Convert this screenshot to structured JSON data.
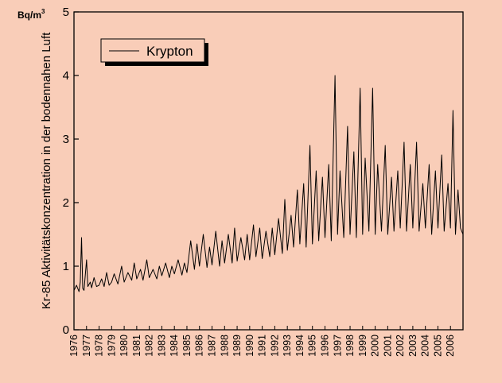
{
  "chart_data": {
    "type": "line",
    "unit_label": "Bq/m",
    "unit_superscript": "3",
    "ylabel": "Kr-85 Aktivitätskonzentration in der bodennahen Luft",
    "xlim": [
      1976,
      2007
    ],
    "ylim": [
      0,
      5
    ],
    "y_ticks": [
      "0",
      "1",
      "2",
      "3",
      "4",
      "5"
    ],
    "y_tick_values": [
      0,
      1,
      2,
      3,
      4,
      5
    ],
    "x_ticks": [
      "1976",
      "1977",
      "1978",
      "1979",
      "1980",
      "1981",
      "1982",
      "1983",
      "1984",
      "1985",
      "1986",
      "1987",
      "1988",
      "1989",
      "1990",
      "1991",
      "1992",
      "1993",
      "1994",
      "1995",
      "1996",
      "1997",
      "1998",
      "1999",
      "2000",
      "2001",
      "2002",
      "2003",
      "2004",
      "2005",
      "2006"
    ],
    "x_tick_values": [
      1976,
      1977,
      1978,
      1979,
      1980,
      1981,
      1982,
      1983,
      1984,
      1985,
      1986,
      1987,
      1988,
      1989,
      1990,
      1991,
      1992,
      1993,
      1994,
      1995,
      1996,
      1997,
      1998,
      1999,
      2000,
      2001,
      2002,
      2003,
      2004,
      2005,
      2006
    ],
    "legend": {
      "position": "top-left",
      "label": "Krypton"
    },
    "grid": false,
    "series": [
      {
        "name": "Krypton",
        "color": "#000000",
        "x": [
          1976.0,
          1976.2,
          1976.4,
          1976.5,
          1976.6,
          1976.7,
          1976.8,
          1977.0,
          1977.1,
          1977.3,
          1977.4,
          1977.6,
          1977.8,
          1978.0,
          1978.2,
          1978.4,
          1978.6,
          1978.8,
          1979.0,
          1979.2,
          1979.5,
          1979.8,
          1980.0,
          1980.3,
          1980.6,
          1980.8,
          1981.0,
          1981.3,
          1981.5,
          1981.8,
          1982.0,
          1982.3,
          1982.6,
          1982.8,
          1983.0,
          1983.3,
          1983.6,
          1983.8,
          1984.0,
          1984.3,
          1984.6,
          1984.8,
          1985.0,
          1985.3,
          1985.6,
          1985.8,
          1986.0,
          1986.3,
          1986.6,
          1986.8,
          1987.0,
          1987.3,
          1987.6,
          1987.8,
          1988.0,
          1988.3,
          1988.6,
          1988.8,
          1989.0,
          1989.3,
          1989.6,
          1989.8,
          1990.0,
          1990.3,
          1990.5,
          1990.8,
          1991.0,
          1991.3,
          1991.6,
          1991.8,
          1992.0,
          1992.3,
          1992.6,
          1992.8,
          1993.0,
          1993.3,
          1993.5,
          1993.8,
          1994.0,
          1994.3,
          1994.5,
          1994.8,
          1995.0,
          1995.3,
          1995.5,
          1995.8,
          1996.0,
          1996.3,
          1996.5,
          1996.8,
          1997.0,
          1997.2,
          1997.5,
          1997.8,
          1998.0,
          1998.3,
          1998.5,
          1998.8,
          1999.0,
          1999.2,
          1999.5,
          1999.8,
          2000.0,
          2000.2,
          2000.5,
          2000.8,
          2001.0,
          2001.3,
          2001.5,
          2001.8,
          2002.0,
          2002.3,
          2002.5,
          2002.8,
          2003.0,
          2003.3,
          2003.5,
          2003.8,
          2004.0,
          2004.3,
          2004.5,
          2004.8,
          2005.0,
          2005.3,
          2005.5,
          2005.8,
          2006.0,
          2006.2,
          2006.4,
          2006.6,
          2006.8,
          2007.0
        ],
        "y": [
          0.62,
          0.7,
          0.6,
          0.75,
          1.45,
          0.65,
          0.62,
          1.1,
          0.68,
          0.75,
          0.66,
          0.82,
          0.68,
          0.7,
          0.8,
          0.68,
          0.9,
          0.7,
          0.75,
          0.88,
          0.72,
          1.0,
          0.75,
          0.9,
          0.78,
          1.05,
          0.8,
          0.95,
          0.78,
          1.1,
          0.82,
          0.95,
          0.8,
          1.0,
          0.85,
          1.05,
          0.82,
          1.0,
          0.88,
          1.1,
          0.86,
          1.05,
          0.9,
          1.4,
          0.95,
          1.35,
          1.0,
          1.5,
          0.98,
          1.3,
          1.02,
          1.55,
          1.0,
          1.4,
          1.05,
          1.5,
          1.05,
          1.6,
          1.08,
          1.45,
          1.1,
          1.5,
          1.1,
          1.65,
          1.15,
          1.6,
          1.12,
          1.55,
          1.15,
          1.6,
          1.18,
          1.75,
          1.2,
          2.05,
          1.25,
          1.8,
          1.3,
          2.2,
          1.35,
          2.3,
          1.3,
          2.9,
          1.35,
          2.5,
          1.4,
          2.4,
          1.45,
          2.6,
          1.4,
          4.0,
          1.5,
          2.5,
          1.45,
          3.2,
          1.5,
          2.8,
          1.45,
          3.8,
          1.5,
          2.7,
          1.55,
          3.8,
          1.5,
          2.6,
          1.55,
          2.9,
          1.5,
          2.4,
          1.55,
          2.5,
          1.6,
          2.95,
          1.55,
          2.6,
          1.6,
          2.95,
          1.55,
          2.3,
          1.6,
          2.6,
          1.5,
          2.5,
          1.6,
          2.75,
          1.55,
          2.3,
          1.6,
          3.45,
          1.5,
          2.2,
          1.6,
          1.5
        ]
      }
    ]
  }
}
